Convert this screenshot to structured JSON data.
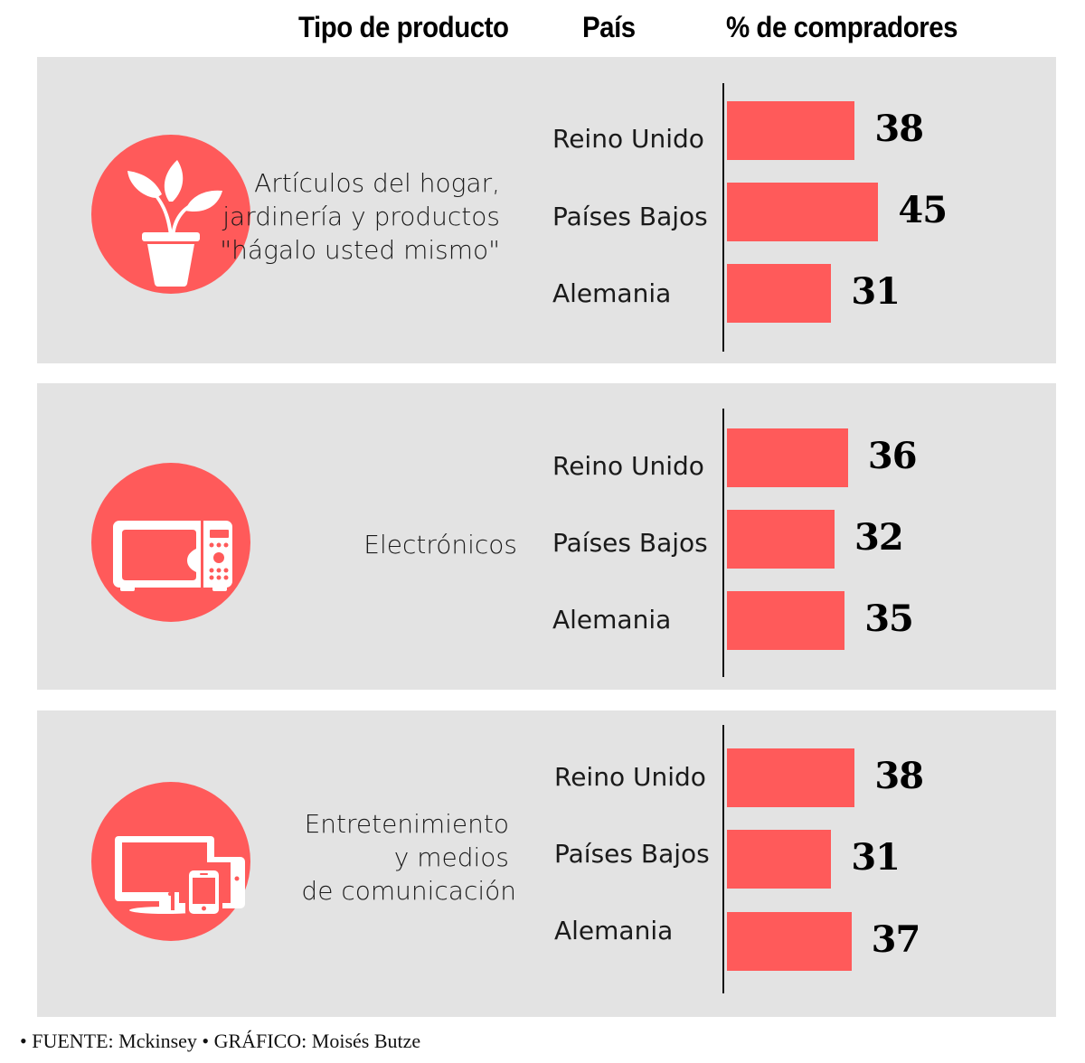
{
  "chart_data": {
    "type": "bar",
    "title": "",
    "column_headers": {
      "product_type": "Tipo de producto",
      "country": "País",
      "percent": "% de compradores"
    },
    "xlabel": "% de compradores",
    "xlim": [
      0,
      50
    ],
    "bar_color": "#ff5a5a",
    "panel_color": "#e3e3e3",
    "groups": [
      {
        "category_lines": [
          "Artículos del hogar,",
          "jardinería y productos",
          "\"hágalo usted mismo\""
        ],
        "icon": "plant-pot-icon",
        "categories": [
          "Reino Unido",
          "Países Bajos",
          "Alemania"
        ],
        "values": [
          38,
          45,
          31
        ]
      },
      {
        "category_lines": [
          "Electrónicos"
        ],
        "icon": "microwave-icon",
        "categories": [
          "Reino Unido",
          "Países Bajos",
          "Alemania"
        ],
        "values": [
          36,
          32,
          35
        ]
      },
      {
        "category_lines": [
          "Entretenimiento",
          "y medios",
          "de comunicación"
        ],
        "icon": "devices-icon",
        "categories": [
          "Reino Unido",
          "Países Bajos",
          "Alemania"
        ],
        "values": [
          38,
          31,
          37
        ]
      }
    ]
  },
  "footer": "• FUENTE: Mckinsey • GRÁFICO: Moisés Butze"
}
